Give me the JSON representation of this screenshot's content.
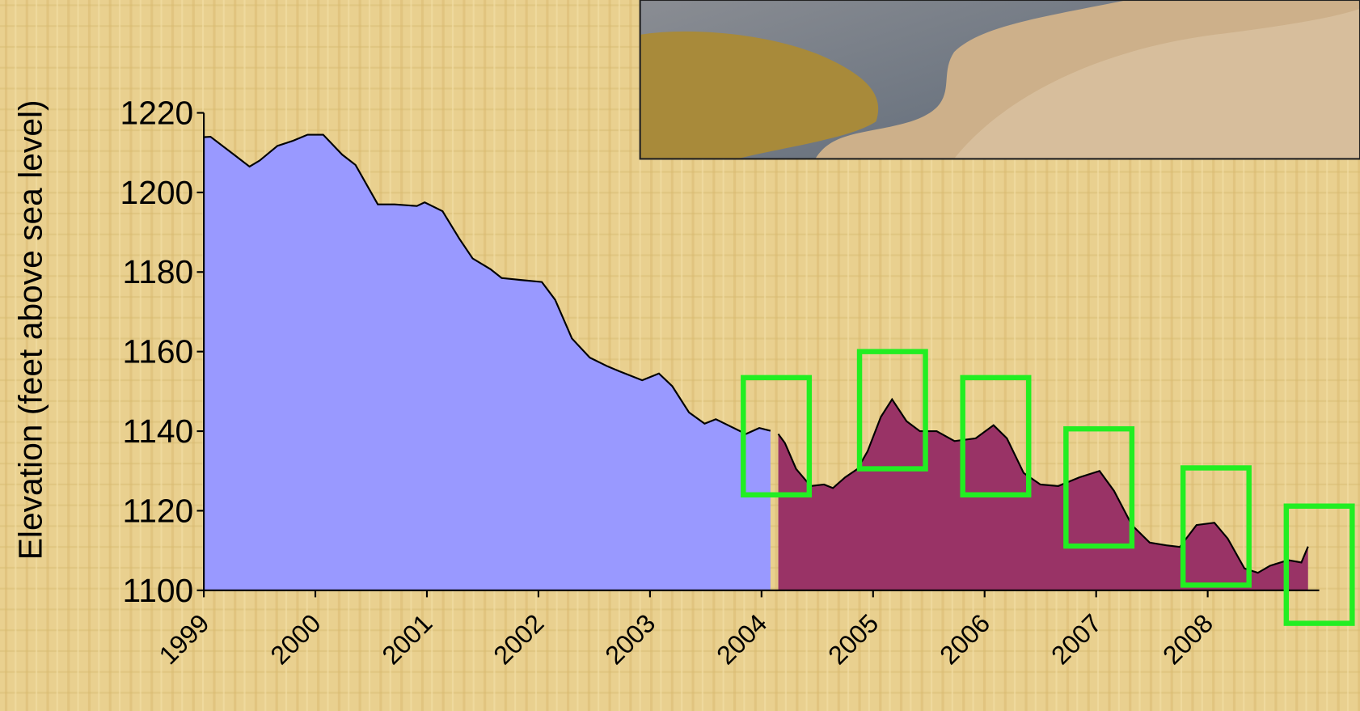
{
  "chart_data": {
    "type": "area",
    "ylabel": "Elevation (feet above sea level)",
    "xlim": [
      1999,
      2009
    ],
    "xticks": [
      1999,
      2000,
      2001,
      2002,
      2003,
      2004,
      2005,
      2006,
      2007,
      2008
    ],
    "ylim": [
      1100,
      1220
    ],
    "yticks": [
      1100,
      1120,
      1140,
      1160,
      1180,
      1200,
      1220
    ],
    "series": [
      {
        "color": "#9999ff",
        "x": [
          1999.0,
          1999.06,
          1999.27,
          1999.41,
          1999.5,
          1999.66,
          1999.8,
          1999.93,
          2000.07,
          2000.24,
          2000.36,
          2000.56,
          2000.71,
          2000.91,
          2000.98,
          2001.14,
          2001.29,
          2001.41,
          2001.57,
          2001.67,
          2001.84,
          2002.03,
          2002.15,
          2002.3,
          2002.46,
          2002.62,
          2002.73,
          2002.93,
          2003.08,
          2003.2,
          2003.35,
          2003.49,
          2003.59,
          2003.7,
          2003.86,
          2003.98,
          2004.08
        ],
        "values": [
          1213.9,
          1214,
          1209.5,
          1206.5,
          1208,
          1211.7,
          1213,
          1214.5,
          1214.5,
          1209.5,
          1206.9,
          1197,
          1197,
          1196.6,
          1197.5,
          1195.3,
          1188.4,
          1183.4,
          1180.7,
          1178.5,
          1178,
          1177.5,
          1173,
          1163.3,
          1158.5,
          1156.3,
          1155,
          1152.8,
          1154.5,
          1151.3,
          1144.7,
          1141.9,
          1143,
          1141.5,
          1139.3,
          1140.8,
          1140.1
        ]
      },
      {
        "color": "#993366",
        "x": [
          2004.15,
          2004.21,
          2004.31,
          2004.44,
          2004.56,
          2004.64,
          2004.75,
          2004.86,
          2004.95,
          2005.07,
          2005.17,
          2005.3,
          2005.42,
          2005.57,
          2005.73,
          2005.92,
          2006.08,
          2006.2,
          2006.35,
          2006.5,
          2006.66,
          2006.85,
          2007.03,
          2007.16,
          2007.32,
          2007.48,
          2007.63,
          2007.75,
          2007.9,
          2008.06,
          2008.18,
          2008.33,
          2008.45,
          2008.56,
          2008.72,
          2008.84,
          2008.9
        ],
        "values": [
          1139.3,
          1137,
          1130.5,
          1126.2,
          1126.6,
          1125.7,
          1128.4,
          1130.5,
          1134.9,
          1143.6,
          1148,
          1142.5,
          1140,
          1140,
          1137.5,
          1138.2,
          1141.5,
          1138.2,
          1129.5,
          1126.6,
          1126.2,
          1128.4,
          1130,
          1125,
          1116.4,
          1112,
          1111.3,
          1110.9,
          1116.4,
          1117,
          1113,
          1105.5,
          1104.4,
          1106.2,
          1107.6,
          1107,
          1111
        ]
      }
    ]
  }
}
